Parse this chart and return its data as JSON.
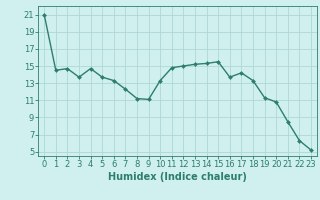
{
  "x": [
    0,
    1,
    2,
    3,
    4,
    5,
    6,
    7,
    8,
    9,
    10,
    11,
    12,
    13,
    14,
    15,
    16,
    17,
    18,
    19,
    20,
    21,
    22,
    23
  ],
  "y": [
    21,
    14.5,
    14.7,
    13.7,
    14.7,
    13.7,
    13.3,
    12.3,
    11.2,
    11.1,
    13.3,
    14.8,
    15.0,
    15.2,
    15.3,
    15.5,
    13.7,
    14.2,
    13.3,
    11.3,
    10.8,
    8.5,
    6.3,
    5.2
  ],
  "line_color": "#2e7d6e",
  "marker": "D",
  "marker_size": 2,
  "bg_color": "#cff0ee",
  "grid_color": "#aed8d4",
  "xlabel": "Humidex (Indice chaleur)",
  "ylim": [
    4.5,
    22
  ],
  "xlim": [
    -0.5,
    23.5
  ],
  "yticks": [
    5,
    7,
    9,
    11,
    13,
    15,
    17,
    19,
    21
  ],
  "xticks": [
    0,
    1,
    2,
    3,
    4,
    5,
    6,
    7,
    8,
    9,
    10,
    11,
    12,
    13,
    14,
    15,
    16,
    17,
    18,
    19,
    20,
    21,
    22,
    23
  ],
  "tick_color": "#2e7d6e",
  "label_fontsize": 7,
  "tick_fontsize": 6,
  "line_width": 1.0
}
